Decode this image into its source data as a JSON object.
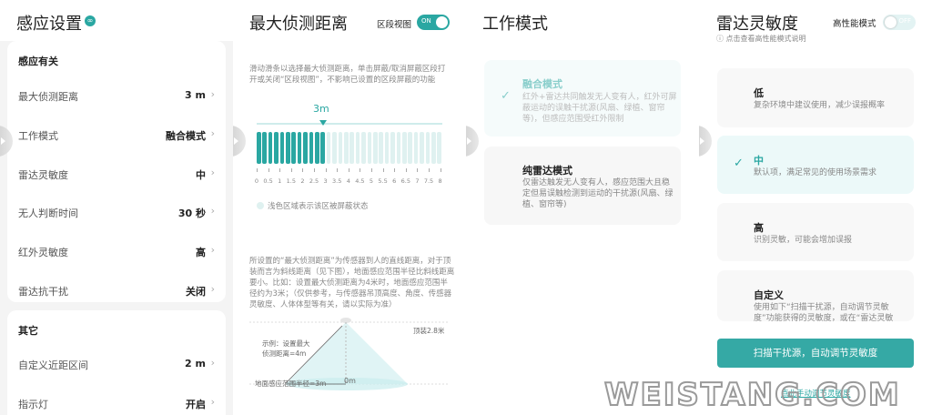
{
  "accent": "#2aa7a2",
  "p1": {
    "title": "感应设置",
    "sections": [
      {
        "label": "感应有关",
        "rows": [
          {
            "label": "最大侦测距离",
            "value": "3 m"
          },
          {
            "label": "工作模式",
            "value": "融合模式"
          },
          {
            "label": "雷达灵敏度",
            "value": "中"
          },
          {
            "label": "无人判断时间",
            "value": "30 秒"
          },
          {
            "label": "红外灵敏度",
            "value": "高"
          },
          {
            "label": "雷达抗干扰",
            "value": "关闭"
          }
        ]
      },
      {
        "label": "其它",
        "rows": [
          {
            "label": "自定义近距区间",
            "value": "2 m"
          },
          {
            "label": "指示灯",
            "value": "开启"
          }
        ]
      }
    ]
  },
  "p2": {
    "title": "最大侦测距离",
    "toggle_label": "区段视图",
    "toggle_state": "ON",
    "hint": "滑动滑条以选择最大侦测距离，单击屏蔽/取消屏蔽区段打开或关闭“区段视图”，不影响已设置的区段屏蔽的功能",
    "slider_value": "3m",
    "slider_max": 8,
    "slider_selected": 3,
    "ticks": [
      "0",
      "0.5",
      "1",
      "1.5",
      "2",
      "2.5",
      "3",
      "3.5",
      "4",
      "4.5",
      "5",
      "5.5",
      "6",
      "6.5",
      "7",
      "7.5",
      "8"
    ],
    "legend": "浅色区域表示该区被屏蔽状态",
    "para": "所设置的“最大侦测距离”为传感器到人的直线距离，对于顶装而言为斜线距离（见下图），地面感应范围半径比斜线距离要小。比如：设置最大侦测距离为4米时，地面感应范围半径约为3米；（仅供参考，与传感器吊顶高度、角度、传感器灵敏度、人体体型等有关，请以实际为准）",
    "diagram": {
      "ceiling": "顶装2.8米",
      "example1": "示例：设置最大",
      "example2": "侦测距离=4m",
      "radius": "地面感应范围半径=3m",
      "origin": "0m"
    }
  },
  "p3": {
    "title": "工作模式",
    "modes": [
      {
        "title": "融合模式",
        "desc": "红外+雷达共同触发无人变有人，红外可屏蔽运动的误触干扰源(风扇、绿植、窗帘等)，但感应范围受红外限制",
        "selected": true
      },
      {
        "title": "纯雷达模式",
        "desc": "仅雷达触发无人变有人，感应范围大且稳定但易误触检测到运动的干扰源(风扇、绿植、窗帘等)",
        "selected": false
      }
    ]
  },
  "p4": {
    "title": "雷达灵敏度",
    "toggle_label": "高性能模式",
    "toggle_state": "OFF",
    "info": "点击查看高性能模式说明",
    "levels": [
      {
        "title": "低",
        "desc": "复杂环境中建议使用，减少误报概率",
        "selected": false
      },
      {
        "title": "中",
        "desc": "默认项，满足常见的使用场景需求",
        "selected": true
      },
      {
        "title": "高",
        "desc": "识别灵敏，可能会增加误报",
        "selected": false
      },
      {
        "title": "自定义",
        "desc": "使用如下“扫描干扰源，自动调节灵敏度”功能获得的灵敏度，或在“雷达灵敏",
        "selected": false
      }
    ],
    "button": "扫描干扰源，自动调节灵敏度",
    "link": "点此手动调节灵敏度"
  },
  "watermark": "WEISTANG.COM"
}
